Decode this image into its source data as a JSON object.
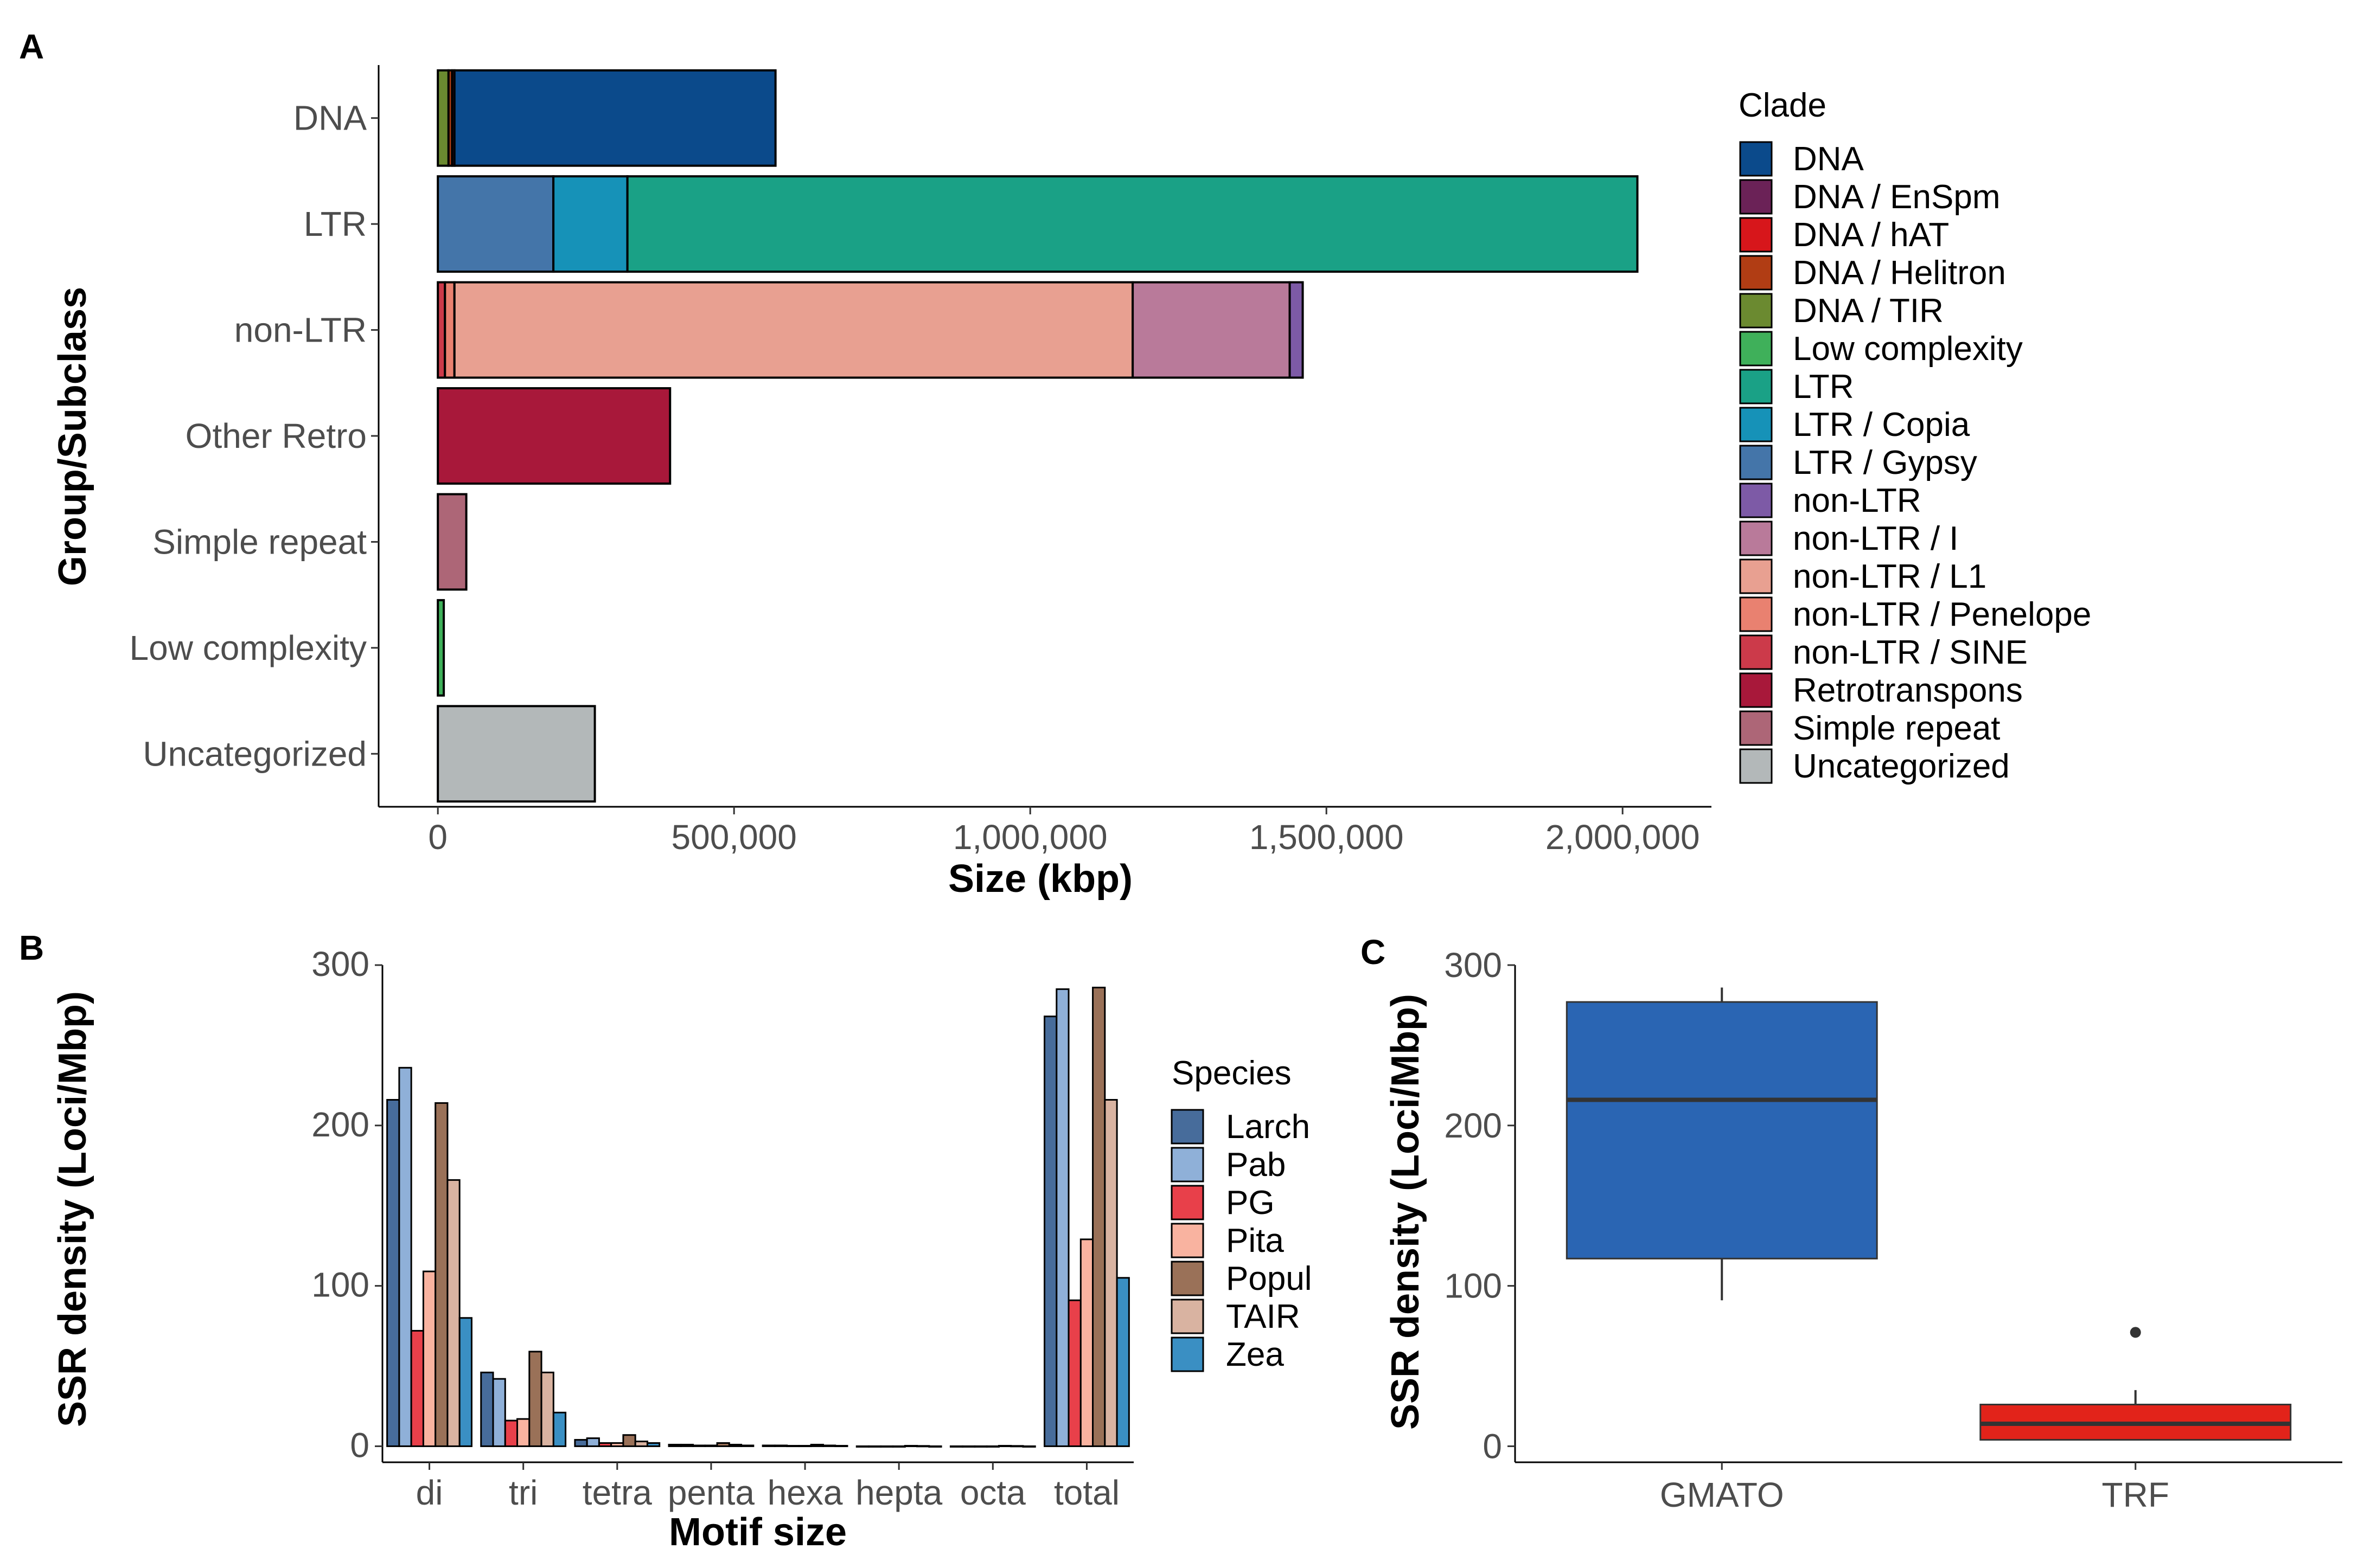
{
  "figure": {
    "panels": [
      "A",
      "B",
      "C"
    ]
  },
  "chart_data": [
    {
      "panel": "A",
      "type": "bar",
      "orientation": "horizontal",
      "stacked": true,
      "xlabel": "Size (kbp)",
      "ylabel": "Group/Subclass",
      "xlim": [
        -100000,
        2150000
      ],
      "xticks": [
        0,
        500000,
        1000000,
        1500000,
        2000000
      ],
      "xtick_labels": [
        "0",
        "500,000",
        "1,000,000",
        "1,500,000",
        "2,000,000"
      ],
      "legend_title": "Clade",
      "legend_position": "right",
      "clades": [
        {
          "name": "DNA",
          "color": "#0b4a8b"
        },
        {
          "name": "DNA / EnSpm",
          "color": "#6b2257"
        },
        {
          "name": "DNA / hAT",
          "color": "#d7161b"
        },
        {
          "name": "DNA / Helitron",
          "color": "#b13d14"
        },
        {
          "name": "DNA / TIR",
          "color": "#6b8a30"
        },
        {
          "name": "Low complexity",
          "color": "#3fb05a"
        },
        {
          "name": "LTR",
          "color": "#1aa186"
        },
        {
          "name": "LTR / Copia",
          "color": "#1692b8"
        },
        {
          "name": "LTR / Gypsy",
          "color": "#4475a9"
        },
        {
          "name": "non-LTR",
          "color": "#7d5aa6"
        },
        {
          "name": "non-LTR / I",
          "color": "#b97a9a"
        },
        {
          "name": "non-LTR / L1",
          "color": "#e8a091"
        },
        {
          "name": "non-LTR / Penelope",
          "color": "#e98170"
        },
        {
          "name": "non-LTR / SINE",
          "color": "#cc3a4a"
        },
        {
          "name": "Retrotranspons",
          "color": "#a8183a"
        },
        {
          "name": "Simple repeat",
          "color": "#ad6677"
        },
        {
          "name": "Uncategorized",
          "color": "#b3b8b9"
        }
      ],
      "categories": [
        "DNA",
        "LTR",
        "non-LTR",
        "Other Retro",
        "Simple repeat",
        "Low complexity",
        "Uncategorized"
      ],
      "bars": [
        {
          "category": "DNA",
          "segments": [
            {
              "clade": "DNA / TIR",
              "value": 18000
            },
            {
              "clade": "DNA / Helitron",
              "value": 6000
            },
            {
              "clade": "DNA / EnSpm",
              "value": 4000
            },
            {
              "clade": "DNA",
              "value": 542000
            }
          ]
        },
        {
          "category": "LTR",
          "segments": [
            {
              "clade": "LTR / Gypsy",
              "value": 195000
            },
            {
              "clade": "LTR / Copia",
              "value": 125000
            },
            {
              "clade": "LTR",
              "value": 1705000
            }
          ]
        },
        {
          "category": "non-LTR",
          "segments": [
            {
              "clade": "non-LTR / SINE",
              "value": 12000
            },
            {
              "clade": "non-LTR / Penelope",
              "value": 16000
            },
            {
              "clade": "non-LTR / L1",
              "value": 1145000
            },
            {
              "clade": "non-LTR / I",
              "value": 265000
            },
            {
              "clade": "non-LTR",
              "value": 22000
            }
          ]
        },
        {
          "category": "Other Retro",
          "segments": [
            {
              "clade": "Retrotranspons",
              "value": 392000
            }
          ]
        },
        {
          "category": "Simple repeat",
          "segments": [
            {
              "clade": "Simple repeat",
              "value": 48000
            }
          ]
        },
        {
          "category": "Low complexity",
          "segments": [
            {
              "clade": "Low complexity",
              "value": 10000
            }
          ]
        },
        {
          "category": "Uncategorized",
          "segments": [
            {
              "clade": "Uncategorized",
              "value": 265000
            }
          ]
        }
      ]
    },
    {
      "panel": "B",
      "type": "bar",
      "orientation": "vertical",
      "grouped": true,
      "xlabel": "Motif size",
      "ylabel": "SSR density (Loci/Mbp)",
      "ylim": [
        -10,
        300
      ],
      "yticks": [
        0,
        100,
        200,
        300
      ],
      "legend_title": "Species",
      "legend_position": "right",
      "categories": [
        "di",
        "tri",
        "tetra",
        "penta",
        "hexa",
        "hepta",
        "octa",
        "total"
      ],
      "series": [
        {
          "name": "Larch",
          "color": "#476c9b",
          "values": [
            216,
            46,
            4,
            1,
            0.5,
            0,
            0,
            268
          ]
        },
        {
          "name": "Pab",
          "color": "#8fb0d8",
          "values": [
            236,
            42,
            5,
            1,
            0.5,
            0,
            0,
            285
          ]
        },
        {
          "name": "PG",
          "color": "#e8404a",
          "values": [
            72,
            16,
            2,
            0.5,
            0.3,
            0,
            0,
            91
          ]
        },
        {
          "name": "Pita",
          "color": "#f9b3a0",
          "values": [
            109,
            17,
            2,
            0.5,
            0.3,
            0,
            0,
            129
          ]
        },
        {
          "name": "Popul",
          "color": "#9a7158",
          "values": [
            214,
            59,
            7,
            2,
            1,
            0.3,
            0.3,
            286
          ]
        },
        {
          "name": "TAIR",
          "color": "#d9b3a1",
          "values": [
            166,
            46,
            3,
            1,
            0.5,
            0.2,
            0.2,
            216
          ]
        },
        {
          "name": "Zea",
          "color": "#3a8fc3",
          "values": [
            80,
            21,
            2,
            0.5,
            0.3,
            0,
            0,
            105
          ]
        }
      ]
    },
    {
      "panel": "C",
      "type": "box",
      "xlabel": "",
      "ylabel": "SSR density (Loci/Mbp)",
      "ylim": [
        -10,
        300
      ],
      "yticks": [
        0,
        100,
        200,
        300
      ],
      "categories": [
        "GMATO",
        "TRF"
      ],
      "boxes": [
        {
          "category": "GMATO",
          "color": "#2a65b3",
          "min": 91,
          "q1": 117,
          "median": 216,
          "q3": 277,
          "max": 286,
          "outliers": []
        },
        {
          "category": "TRF",
          "color": "#e2231a",
          "min": 4,
          "q1": 4,
          "median": 14,
          "q3": 26,
          "max": 35,
          "outliers": [
            71
          ]
        }
      ]
    }
  ]
}
